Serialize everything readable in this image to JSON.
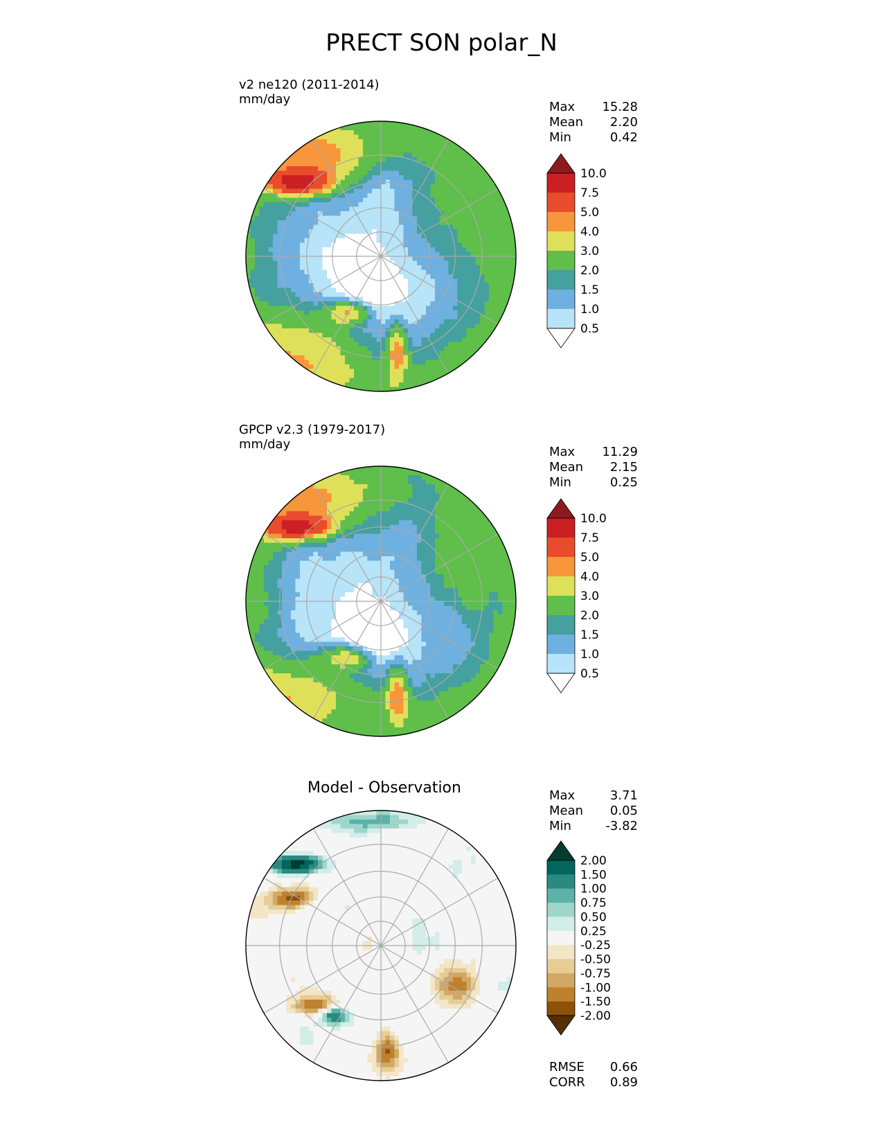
{
  "figure_title": "PRECT SON polar_N",
  "chart_data": [
    {
      "type": "heatmap",
      "panel": "test",
      "title_line1": "v2 ne120 (2011-2014)",
      "title_line2": "mm/day",
      "projection": "north polar stereographic",
      "stats": {
        "max": "15.28",
        "mean": "2.20",
        "min": "0.42"
      },
      "stat_labels": {
        "max": "Max",
        "mean": "Mean",
        "min": "Min"
      },
      "levels": [
        "0.5",
        "1.0",
        "1.5",
        "2.0",
        "3.0",
        "4.0",
        "5.0",
        "7.5",
        "10.0"
      ],
      "colors": [
        "#ffffff",
        "#b7e4f8",
        "#6eb0e0",
        "#45a0a0",
        "#5fbf4a",
        "#dfe05a",
        "#f7963a",
        "#e84c2c",
        "#cc1f24",
        "#8e1a1e"
      ]
    },
    {
      "type": "heatmap",
      "panel": "reference",
      "title_line1": "GPCP v2.3 (1979-2017)",
      "title_line2": "mm/day",
      "projection": "north polar stereographic",
      "stats": {
        "max": "11.29",
        "mean": "2.15",
        "min": "0.25"
      },
      "stat_labels": {
        "max": "Max",
        "mean": "Mean",
        "min": "Min"
      },
      "levels": [
        "0.5",
        "1.0",
        "1.5",
        "2.0",
        "3.0",
        "4.0",
        "5.0",
        "7.5",
        "10.0"
      ],
      "colors": [
        "#ffffff",
        "#b7e4f8",
        "#6eb0e0",
        "#45a0a0",
        "#5fbf4a",
        "#dfe05a",
        "#f7963a",
        "#e84c2c",
        "#cc1f24",
        "#8e1a1e"
      ]
    },
    {
      "type": "heatmap",
      "panel": "difference",
      "center_title": "Model - Observation",
      "projection": "north polar stereographic",
      "stats": {
        "max": "3.71",
        "mean": "0.05",
        "min": "-3.82"
      },
      "stat_labels": {
        "max": "Max",
        "mean": "Mean",
        "min": "Min"
      },
      "metrics": {
        "rmse": "0.66",
        "corr": "0.89"
      },
      "metric_labels": {
        "rmse": "RMSE",
        "corr": "CORR"
      },
      "levels": [
        "-2.00",
        "-1.50",
        "-1.00",
        "-0.75",
        "-0.50",
        "-0.25",
        "0.25",
        "0.50",
        "0.75",
        "1.00",
        "1.50",
        "2.00"
      ],
      "colors": [
        "#543005",
        "#8c510a",
        "#bf812d",
        "#d2a866",
        "#e6cd94",
        "#f3e6c7",
        "#f5f5f5",
        "#d3ede9",
        "#9fd6cc",
        "#5bb2a6",
        "#2a8a80",
        "#01665e",
        "#003c30"
      ]
    }
  ]
}
